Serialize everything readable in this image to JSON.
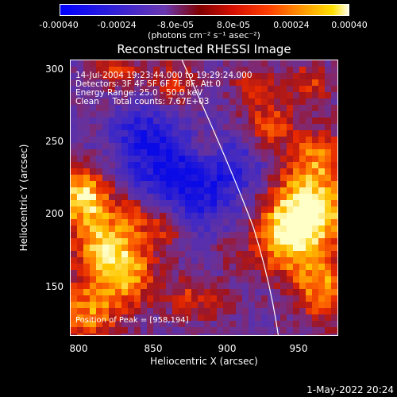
{
  "colorbar": {
    "ticks": [
      "-0.00040",
      "-0.00024",
      "-8.0e-05",
      "8.0e-05",
      "0.00024",
      "0.00040"
    ],
    "units": "(photons cm⁻² s⁻¹ asec⁻²)",
    "colors": [
      "#0000ff",
      "#3a20d0",
      "#7a40a0",
      "#b01818",
      "#ff3000",
      "#ff9000",
      "#ffe000",
      "#ffffff"
    ]
  },
  "title": "Reconstructed RHESSI Image",
  "info": {
    "time_range": "14-Jul-2004 19:23:44.000 to 19:29:24.000",
    "detectors": "Detectors: 3F 4F 5F 6F 7F 8F, Att 0",
    "energy": "Energy Range: 25.0 - 50.0 keV",
    "clean": "Clean     Total counts: 7.67E+03"
  },
  "peak": "Position of Peak = [958,194]",
  "x_axis": {
    "label": "Heliocentric X (arcsec)",
    "ticks": [
      "800",
      "850",
      "900",
      "950"
    ],
    "range": [
      785,
      978
    ]
  },
  "y_axis": {
    "label": "Heliocentric Y (arcsec)",
    "ticks": [
      "150",
      "200",
      "250",
      "300"
    ],
    "range": [
      112,
      307
    ]
  },
  "timestamp": "1-May-2022 20:24"
}
